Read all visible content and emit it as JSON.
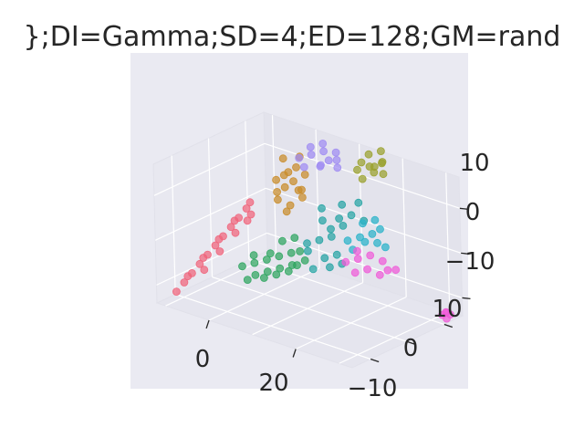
{
  "chart_data": {
    "type": "scatter",
    "title": "};DI=Gamma;SD=4;ED=128;GM=rand",
    "xlabel": "",
    "ylabel": "",
    "zlabel": "",
    "x_ticks": [
      "0",
      "20"
    ],
    "y_ticks": [
      "10",
      "0",
      "−10"
    ],
    "z_ticks": [
      "10",
      "0",
      "−10"
    ],
    "xlim": [
      -12,
      33
    ],
    "ylim": [
      -15,
      15
    ],
    "zlim": [
      -14,
      17
    ],
    "grid": true,
    "legend": "none",
    "colors": {
      "pane_background": "#eaeaf2",
      "grid": "#ffffff",
      "text": "#262626"
    },
    "series": [
      {
        "color": "#f0637a",
        "points": [
          [
            -10,
            -12,
            -12
          ],
          [
            -9,
            -11,
            -10
          ],
          [
            -8,
            -10,
            -8
          ],
          [
            -7,
            -9,
            -6
          ],
          [
            -6,
            -8,
            -4
          ],
          [
            -5,
            -7,
            -2
          ],
          [
            -4,
            -6,
            0
          ],
          [
            -3,
            -5,
            2
          ],
          [
            -2,
            -4,
            4
          ],
          [
            -1,
            -3,
            6
          ],
          [
            -9,
            -10,
            -9
          ],
          [
            -7,
            -8,
            -5
          ],
          [
            -5,
            -6,
            -1
          ],
          [
            -3,
            -4,
            3
          ],
          [
            -1,
            -2,
            7
          ],
          [
            0,
            -3,
            5
          ],
          [
            -6,
            -9,
            -7
          ],
          [
            -4,
            -7,
            -3
          ],
          [
            -2,
            -5,
            1
          ],
          [
            0,
            -4,
            4
          ]
        ]
      },
      {
        "color": "#2ea55f",
        "points": [
          [
            2,
            -8,
            -4
          ],
          [
            4,
            -7,
            -3
          ],
          [
            6,
            -6,
            -2
          ],
          [
            8,
            -5,
            -1
          ],
          [
            10,
            -4,
            0
          ],
          [
            5,
            -8,
            -5
          ],
          [
            7,
            -7,
            -4
          ],
          [
            9,
            -6,
            -3
          ],
          [
            11,
            -5,
            -2
          ],
          [
            12,
            -4,
            1
          ],
          [
            3,
            -6,
            -2
          ],
          [
            6,
            -5,
            -1
          ],
          [
            8,
            -4,
            2
          ],
          [
            10,
            -3,
            3
          ],
          [
            13,
            -6,
            -1
          ],
          [
            4,
            -9,
            -6
          ],
          [
            7,
            -8,
            -5
          ],
          [
            9,
            -7,
            -4
          ],
          [
            11,
            -6,
            -3
          ],
          [
            14,
            -5,
            0
          ]
        ]
      },
      {
        "color": "#25a3a3",
        "points": [
          [
            12,
            -2,
            2
          ],
          [
            14,
            -1,
            3
          ],
          [
            16,
            0,
            4
          ],
          [
            15,
            1,
            5
          ],
          [
            17,
            2,
            6
          ],
          [
            13,
            -3,
            1
          ],
          [
            16,
            -2,
            0
          ],
          [
            18,
            -1,
            1
          ],
          [
            14,
            0,
            7
          ],
          [
            17,
            1,
            8
          ],
          [
            19,
            2,
            9
          ],
          [
            15,
            -4,
            -2
          ],
          [
            18,
            -3,
            -1
          ],
          [
            20,
            -2,
            0
          ],
          [
            16,
            3,
            10
          ],
          [
            19,
            4,
            11
          ],
          [
            21,
            3,
            8
          ],
          [
            13,
            1,
            9
          ]
        ]
      },
      {
        "color": "#c98c29",
        "points": [
          [
            0,
            4,
            10
          ],
          [
            2,
            5,
            12
          ],
          [
            4,
            4,
            11
          ],
          [
            1,
            3,
            8
          ],
          [
            3,
            6,
            13
          ],
          [
            5,
            5,
            9
          ],
          [
            2,
            2,
            7
          ],
          [
            4,
            3,
            6
          ],
          [
            6,
            4,
            8
          ],
          [
            0,
            6,
            14
          ],
          [
            3,
            7,
            15
          ],
          [
            5,
            6,
            12
          ],
          [
            1,
            5,
            11
          ],
          [
            4,
            2,
            5
          ],
          [
            6,
            3,
            10
          ],
          [
            2,
            4,
            9
          ]
        ]
      },
      {
        "color": "#a08cf2",
        "points": [
          [
            2,
            8,
            14
          ],
          [
            4,
            9,
            15
          ],
          [
            6,
            10,
            16
          ],
          [
            8,
            9,
            15
          ],
          [
            3,
            10,
            16
          ],
          [
            5,
            11,
            17
          ],
          [
            7,
            8,
            14
          ],
          [
            9,
            10,
            15
          ],
          [
            4,
            7,
            13
          ],
          [
            6,
            9,
            13
          ],
          [
            8,
            11,
            16
          ],
          [
            10,
            9,
            14
          ]
        ]
      },
      {
        "color": "#9aa12c",
        "points": [
          [
            12,
            12,
            13
          ],
          [
            14,
            13,
            14
          ],
          [
            16,
            12,
            15
          ],
          [
            13,
            14,
            16
          ],
          [
            15,
            15,
            17
          ],
          [
            17,
            13,
            16
          ],
          [
            14,
            11,
            12
          ],
          [
            16,
            14,
            15
          ],
          [
            18,
            12,
            14
          ],
          [
            15,
            13,
            13
          ],
          [
            13,
            12,
            15
          ]
        ]
      },
      {
        "color": "#2ab3c9",
        "points": [
          [
            18,
            2,
            3
          ],
          [
            20,
            3,
            4
          ],
          [
            22,
            4,
            5
          ],
          [
            24,
            3,
            4
          ],
          [
            19,
            5,
            6
          ],
          [
            21,
            6,
            7
          ],
          [
            23,
            5,
            6
          ],
          [
            25,
            4,
            3
          ],
          [
            20,
            1,
            2
          ],
          [
            22,
            2,
            4
          ]
        ]
      },
      {
        "color": "#f05bd8",
        "points": [
          [
            20,
            -1,
            0
          ],
          [
            22,
            0,
            1
          ],
          [
            24,
            1,
            2
          ],
          [
            26,
            2,
            1
          ],
          [
            28,
            1,
            0
          ],
          [
            23,
            -2,
            -1
          ],
          [
            25,
            -1,
            0
          ],
          [
            27,
            0,
            -1
          ],
          [
            29,
            2,
            0
          ],
          [
            21,
            1,
            2
          ],
          [
            30,
            13,
            -14
          ],
          [
            31,
            14,
            -14
          ],
          [
            30.5,
            13.5,
            -13.5
          ],
          [
            31,
            13,
            -14.5
          ],
          [
            30,
            14,
            -13.8
          ]
        ]
      }
    ]
  }
}
